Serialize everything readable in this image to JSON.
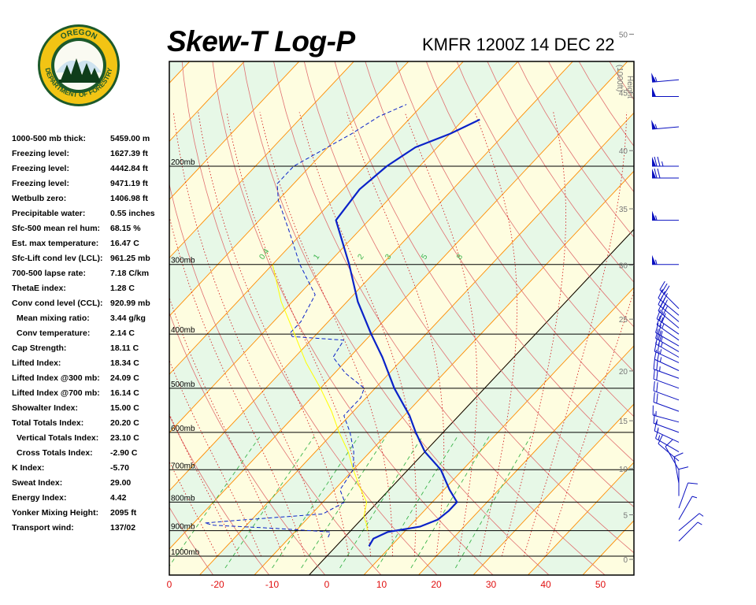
{
  "header": {
    "title": "Skew-T Log-P",
    "station": "KMFR 1200Z 14 DEC 22"
  },
  "logo": {
    "top_text": "OREGON",
    "bottom_text": "DEPARTMENT OF FORESTRY",
    "colors": {
      "ring": "#f2c414",
      "inner": "#1d5a2a",
      "tree": "#0f3d1a"
    }
  },
  "indices": [
    {
      "label": "1000-500 mb thick:",
      "value": "5459.00 m"
    },
    {
      "label": "Freezing level:",
      "value": "1627.39 ft"
    },
    {
      "label": "Freezing level:",
      "value": "4442.84 ft"
    },
    {
      "label": "Freezing level:",
      "value": "9471.19 ft"
    },
    {
      "label": "Wetbulb zero:",
      "value": "1406.98 ft"
    },
    {
      "label": "Precipitable water:",
      "value": "0.55 inches"
    },
    {
      "label": "Sfc-500 mean rel hum:",
      "value": "68.15 %"
    },
    {
      "label": "Est. max temperature:",
      "value": "16.47 C"
    },
    {
      "label": "Sfc-Lift cond lev (LCL):",
      "value": "961.25 mb"
    },
    {
      "label": "700-500 lapse rate:",
      "value": "7.18 C/km"
    },
    {
      "label": "ThetaE index:",
      "value": "1.28 C"
    },
    {
      "label": "Conv cond level (CCL):",
      "value": "920.99 mb"
    },
    {
      "label": "Mean mixing ratio:",
      "value": "3.44 g/kg",
      "indent": true
    },
    {
      "label": "Conv temperature:",
      "value": "2.14 C",
      "indent": true
    },
    {
      "label": "Cap Strength:",
      "value": "18.11 C"
    },
    {
      "label": "Lifted Index:",
      "value": "18.34 C"
    },
    {
      "label": "Lifted Index @300 mb:",
      "value": "24.09 C"
    },
    {
      "label": "Lifted Index @700 mb:",
      "value": "16.14 C"
    },
    {
      "label": "Showalter Index:",
      "value": "15.00 C"
    },
    {
      "label": "Total Totals Index:",
      "value": "20.20 C"
    },
    {
      "label": "Vertical Totals Index:",
      "value": "23.10 C",
      "indent": true
    },
    {
      "label": "Cross Totals Index:",
      "value": "-2.90 C",
      "indent": true
    },
    {
      "label": "K Index:",
      "value": "-5.70"
    },
    {
      "label": "Sweat Index:",
      "value": "29.00"
    },
    {
      "label": "Energy Index:",
      "value": "4.42"
    },
    {
      "label": "Yonker Mixing Height:",
      "value": "2095 ft"
    },
    {
      "label": "Transport wind:",
      "value": "137/02"
    }
  ],
  "chart_data": {
    "type": "line",
    "title": "Skew-T Log-P",
    "xlabel": "",
    "ylabel": "",
    "x_axis": {
      "label_visible": "0",
      "tick_values": [
        -20,
        -10,
        0,
        10,
        20,
        30,
        40,
        50
      ],
      "tick_labels": [
        "-20",
        "-10",
        "0",
        "10",
        "20",
        "30",
        "40",
        "50"
      ],
      "units": "C",
      "color": "#e01010"
    },
    "pressure_levels": [
      200,
      300,
      400,
      500,
      600,
      700,
      800,
      900,
      1000
    ],
    "pressure_labels": [
      "200mb",
      "300mb",
      "400mb",
      "500mb",
      "600mb",
      "700mb",
      "800mb",
      "900mb",
      "1000mb"
    ],
    "height_axis": {
      "title_line1": "Height",
      "title_line2": "(1000ft)",
      "ticks": [
        {
          "value": 50,
          "label": "50"
        },
        {
          "value": 45,
          "label": "45"
        },
        {
          "value": 40,
          "label": "40"
        },
        {
          "value": 35,
          "label": "35"
        },
        {
          "value": 30,
          "label": "30"
        },
        {
          "value": 25,
          "label": "25"
        },
        {
          "value": 20,
          "label": "20"
        },
        {
          "value": 15,
          "label": "15"
        },
        {
          "value": 10,
          "label": "10"
        },
        {
          "value": 5,
          "label": "5"
        },
        {
          "value": 0,
          "label": "0"
        }
      ]
    },
    "mixing_ratio_labels": [
      "0.4",
      "1",
      "2",
      "3",
      "5",
      "8"
    ],
    "series": [
      {
        "role": "temperature",
        "color": "#0a22c8",
        "style": "solid",
        "points": [
          {
            "p": 960,
            "t": 6
          },
          {
            "p": 930,
            "t": 5.5
          },
          {
            "p": 905,
            "t": 7
          },
          {
            "p": 885,
            "t": 12
          },
          {
            "p": 860,
            "t": 14
          },
          {
            "p": 830,
            "t": 14.5
          },
          {
            "p": 800,
            "t": 14.5
          },
          {
            "p": 760,
            "t": 11
          },
          {
            "p": 700,
            "t": 6
          },
          {
            "p": 650,
            "t": 0
          },
          {
            "p": 600,
            "t": -5
          },
          {
            "p": 560,
            "t": -9
          },
          {
            "p": 500,
            "t": -16.5
          },
          {
            "p": 440,
            "t": -24
          },
          {
            "p": 400,
            "t": -30
          },
          {
            "p": 350,
            "t": -38
          },
          {
            "p": 300,
            "t": -46
          },
          {
            "p": 250,
            "t": -56
          },
          {
            "p": 220,
            "t": -57
          },
          {
            "p": 200,
            "t": -56
          },
          {
            "p": 185,
            "t": -54
          },
          {
            "p": 175,
            "t": -50
          },
          {
            "p": 165,
            "t": -47
          }
        ]
      },
      {
        "role": "dewpoint",
        "color": "#0a22c8",
        "style": "dashed",
        "points": [
          {
            "p": 925,
            "t": -3
          },
          {
            "p": 905,
            "t": -3.5
          },
          {
            "p": 892,
            "t": -14
          },
          {
            "p": 880,
            "t": -26
          },
          {
            "p": 872,
            "t": -28
          },
          {
            "p": 862,
            "t": -22
          },
          {
            "p": 840,
            "t": -8
          },
          {
            "p": 800,
            "t": -6
          },
          {
            "p": 760,
            "t": -9
          },
          {
            "p": 700,
            "t": -10
          },
          {
            "p": 650,
            "t": -13
          },
          {
            "p": 600,
            "t": -17
          },
          {
            "p": 560,
            "t": -21
          },
          {
            "p": 520,
            "t": -21
          },
          {
            "p": 500,
            "t": -22
          },
          {
            "p": 470,
            "t": -28
          },
          {
            "p": 440,
            "t": -33
          },
          {
            "p": 410,
            "t": -34
          },
          {
            "p": 404,
            "t": -44
          },
          {
            "p": 398,
            "t": -45
          },
          {
            "p": 380,
            "t": -45
          },
          {
            "p": 340,
            "t": -47
          },
          {
            "p": 300,
            "t": -55
          },
          {
            "p": 260,
            "t": -63
          },
          {
            "p": 230,
            "t": -70
          },
          {
            "p": 215,
            "t": -73
          },
          {
            "p": 200,
            "t": -73
          },
          {
            "p": 175,
            "t": -68
          },
          {
            "p": 163,
            "t": -66
          },
          {
            "p": 155,
            "t": -63
          }
        ]
      },
      {
        "role": "parcel",
        "color": "#ffff00",
        "style": "solid",
        "points": [
          {
            "p": 900,
            "t": 3
          },
          {
            "p": 880,
            "t": 2
          },
          {
            "p": 850,
            "t": 0
          },
          {
            "p": 800,
            "t": -2
          },
          {
            "p": 750,
            "t": -6
          },
          {
            "p": 700,
            "t": -10
          },
          {
            "p": 650,
            "t": -14
          },
          {
            "p": 600,
            "t": -19
          },
          {
            "p": 550,
            "t": -24
          },
          {
            "p": 500,
            "t": -30
          },
          {
            "p": 450,
            "t": -37
          },
          {
            "p": 400,
            "t": -44
          },
          {
            "p": 350,
            "t": -52
          },
          {
            "p": 300,
            "t": -60
          }
        ]
      }
    ],
    "wind_barbs": [
      {
        "p": 140,
        "dir": 275,
        "speed": 55
      },
      {
        "p": 150,
        "dir": 270,
        "speed": 50
      },
      {
        "p": 170,
        "dir": 275,
        "speed": 55
      },
      {
        "p": 200,
        "dir": 270,
        "speed": 75
      },
      {
        "p": 210,
        "dir": 270,
        "speed": 70
      },
      {
        "p": 250,
        "dir": 270,
        "speed": 55
      },
      {
        "p": 300,
        "dir": 270,
        "speed": 55
      },
      {
        "p": 360,
        "dir": 225,
        "speed": 30
      },
      {
        "p": 370,
        "dir": 230,
        "speed": 30
      },
      {
        "p": 380,
        "dir": 230,
        "speed": 30
      },
      {
        "p": 390,
        "dir": 230,
        "speed": 30
      },
      {
        "p": 400,
        "dir": 235,
        "speed": 30
      },
      {
        "p": 410,
        "dir": 235,
        "speed": 25
      },
      {
        "p": 420,
        "dir": 240,
        "speed": 25
      },
      {
        "p": 430,
        "dir": 240,
        "speed": 25
      },
      {
        "p": 440,
        "dir": 240,
        "speed": 25
      },
      {
        "p": 450,
        "dir": 245,
        "speed": 25
      },
      {
        "p": 465,
        "dir": 245,
        "speed": 25
      },
      {
        "p": 480,
        "dir": 250,
        "speed": 25
      },
      {
        "p": 500,
        "dir": 250,
        "speed": 20
      },
      {
        "p": 525,
        "dir": 250,
        "speed": 20
      },
      {
        "p": 550,
        "dir": 250,
        "speed": 20
      },
      {
        "p": 575,
        "dir": 255,
        "speed": 15
      },
      {
        "p": 600,
        "dir": 250,
        "speed": 15
      },
      {
        "p": 625,
        "dir": 245,
        "speed": 15
      },
      {
        "p": 650,
        "dir": 240,
        "speed": 15
      },
      {
        "p": 675,
        "dir": 230,
        "speed": 10
      },
      {
        "p": 700,
        "dir": 210,
        "speed": 10
      },
      {
        "p": 740,
        "dir": 190,
        "speed": 10
      },
      {
        "p": 780,
        "dir": 180,
        "speed": 10
      },
      {
        "p": 820,
        "dir": 160,
        "speed": 10
      },
      {
        "p": 860,
        "dir": 150,
        "speed": 5
      },
      {
        "p": 900,
        "dir": 130,
        "speed": 5
      },
      {
        "p": 940,
        "dir": 135,
        "speed": 5
      }
    ],
    "colors": {
      "isotherm": "#ff8c00",
      "dry_adiabat": "#e07070",
      "moist_adiabat": "#d01010",
      "mixing_ratio": "#3cb44b",
      "isobar": "#000000",
      "band_green": "#e7f8e7",
      "band_yellow": "#fefde0",
      "barb": "#0a10c0"
    }
  }
}
